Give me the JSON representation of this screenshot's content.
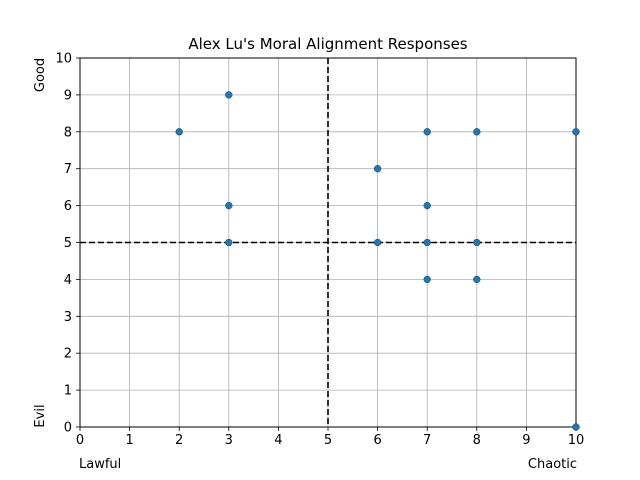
{
  "chart_data": {
    "type": "scatter",
    "title": "Alex Lu's Moral Alignment Responses",
    "xlabel": "",
    "ylabel": "",
    "xlim": [
      0,
      10
    ],
    "ylim": [
      0,
      10
    ],
    "x_ticks": [
      0,
      1,
      2,
      3,
      4,
      5,
      6,
      7,
      8,
      9,
      10
    ],
    "y_ticks": [
      0,
      1,
      2,
      3,
      4,
      5,
      6,
      7,
      8,
      9,
      10
    ],
    "grid": true,
    "reference_lines": {
      "x": 5,
      "y": 5,
      "style": "dashed",
      "color": "#000000"
    },
    "marker_color": "#1f77b4",
    "corner_labels": {
      "x_low": "Lawful",
      "x_high": "Chaotic",
      "y_low": "Evil",
      "y_high": "Good"
    },
    "points": [
      [
        2,
        8
      ],
      [
        3,
        9
      ],
      [
        3,
        6
      ],
      [
        3,
        5
      ],
      [
        6,
        7
      ],
      [
        6,
        5
      ],
      [
        7,
        8
      ],
      [
        7,
        6
      ],
      [
        7,
        5
      ],
      [
        7,
        4
      ],
      [
        8,
        8
      ],
      [
        8,
        5
      ],
      [
        8,
        4
      ],
      [
        10,
        8
      ],
      [
        10,
        0
      ]
    ]
  }
}
